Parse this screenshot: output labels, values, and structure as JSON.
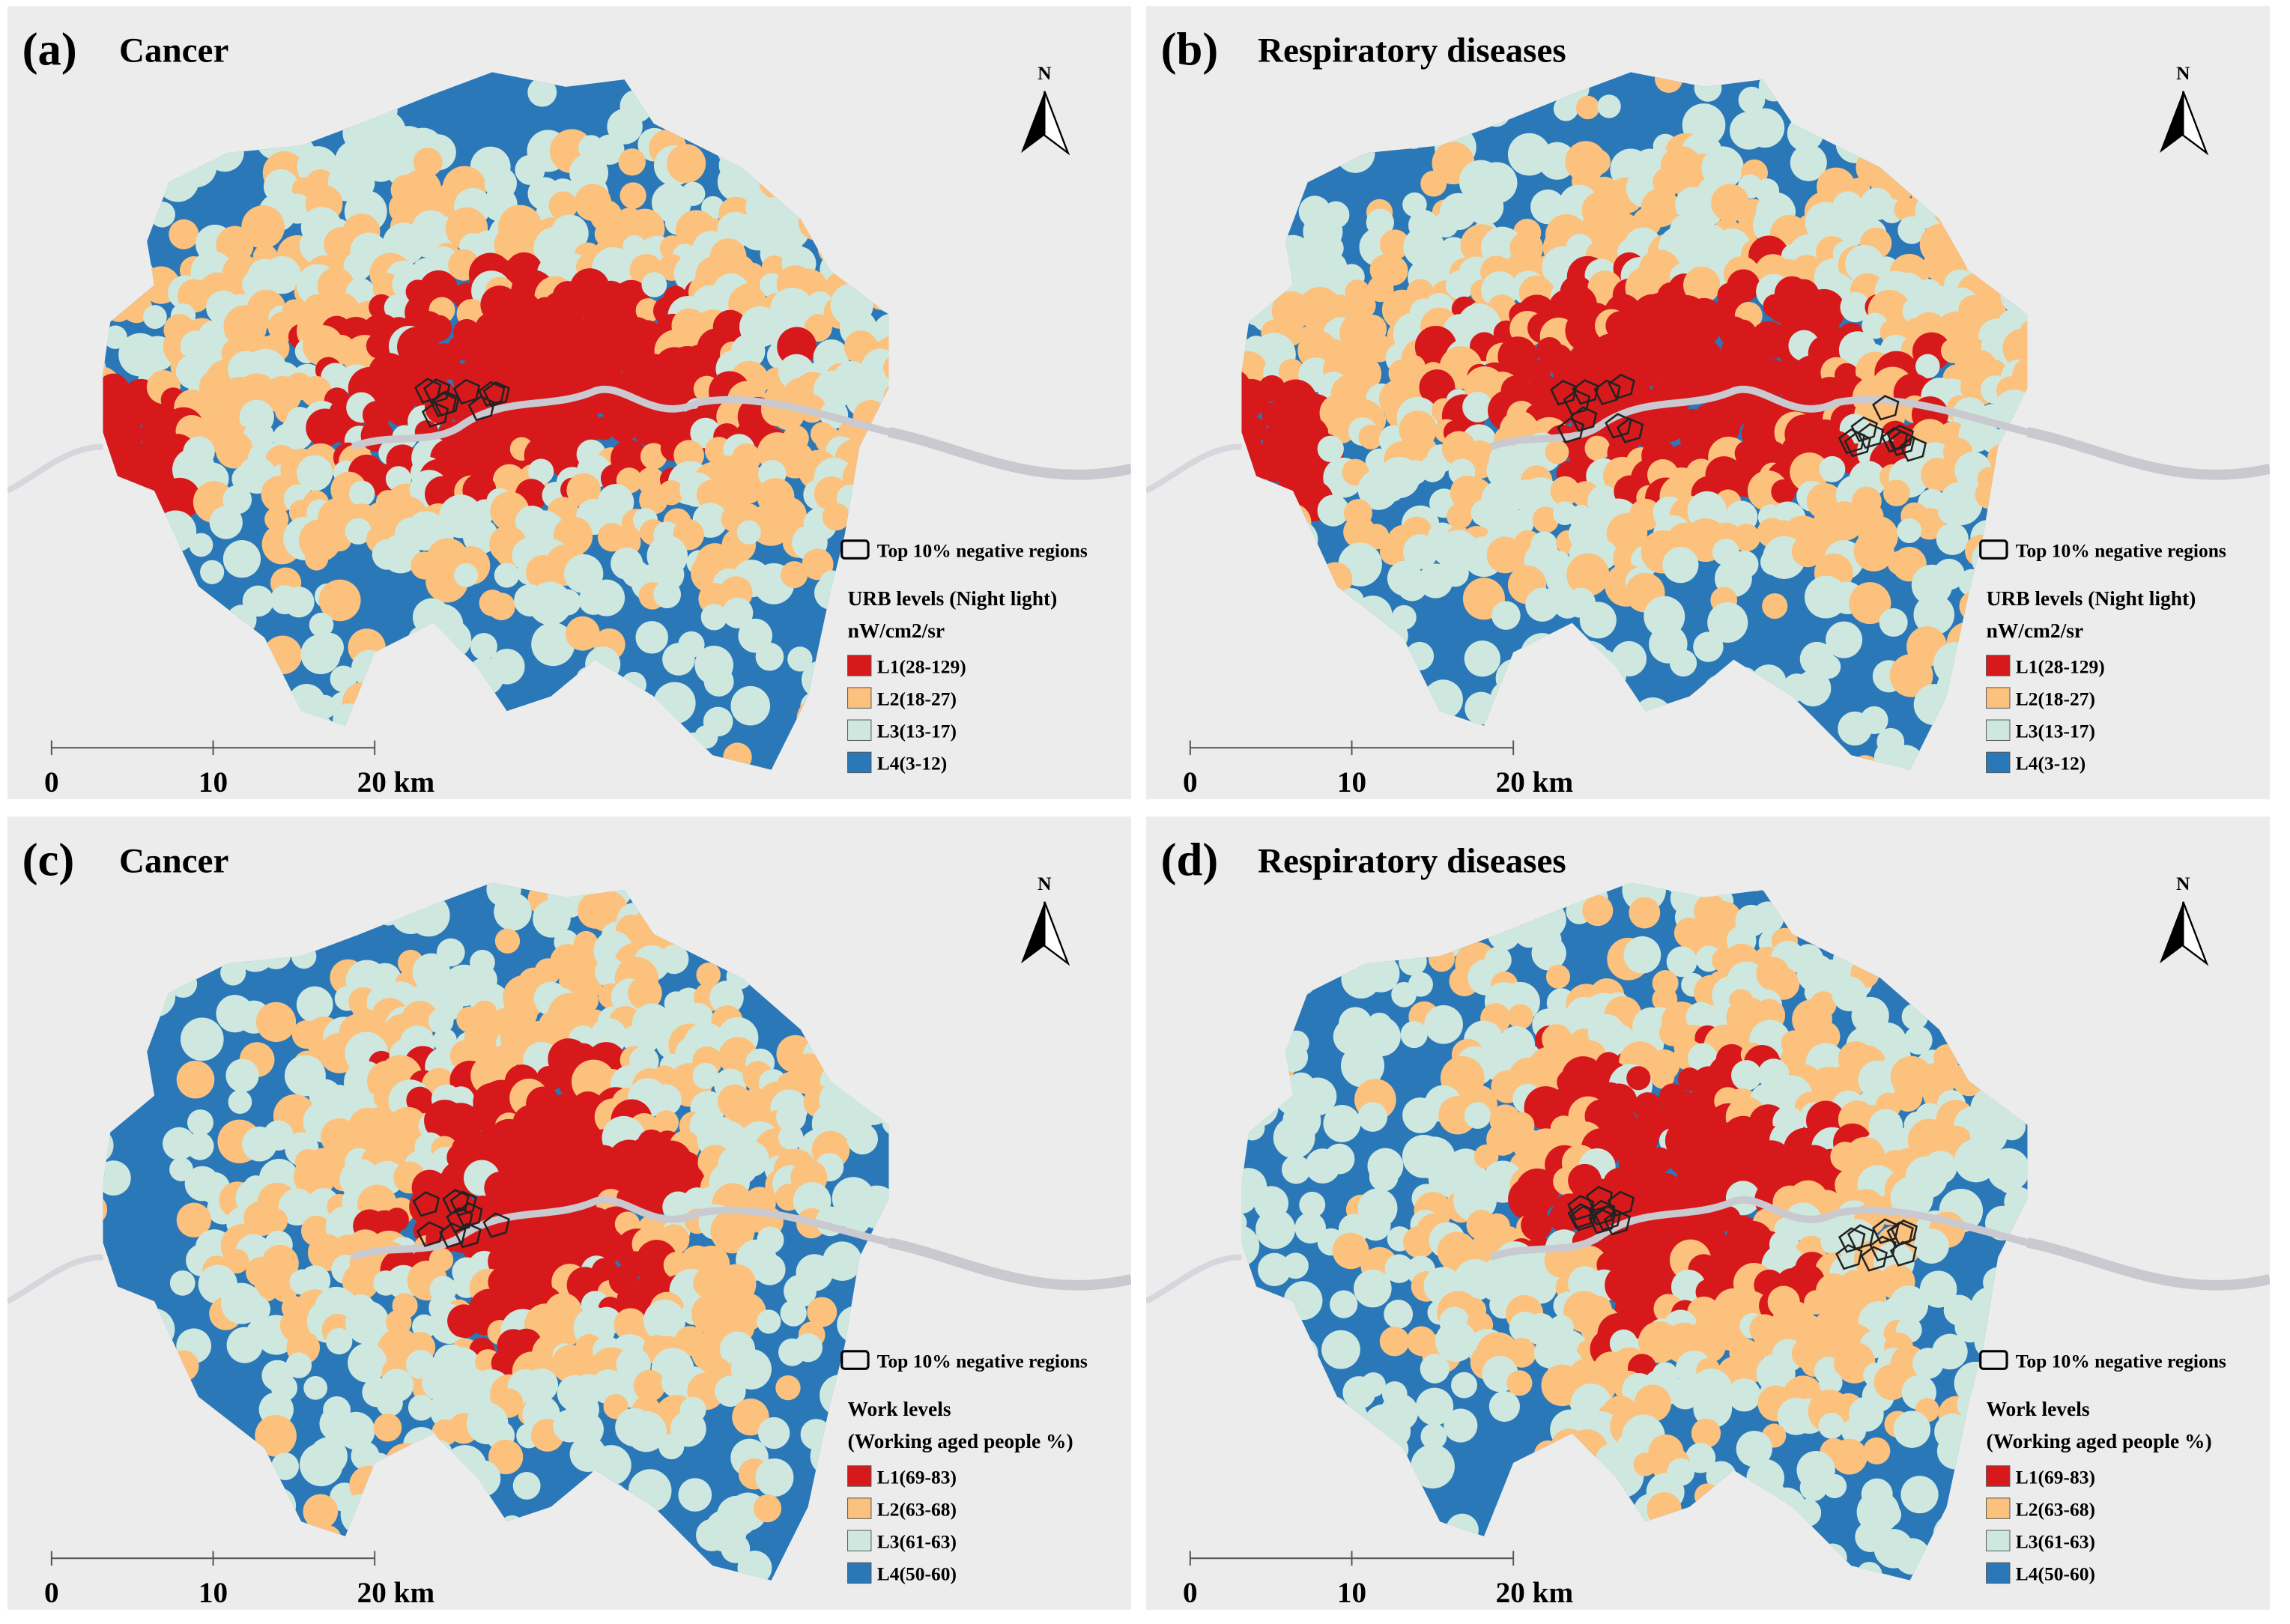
{
  "panels": [
    {
      "label": "(a)",
      "title": "Cancer",
      "north": "N",
      "outline_legend": "Top 10% negative regions",
      "legend_title": "URB levels (Night light)",
      "legend_subtitle": "nW/cm2/sr",
      "legend": [
        {
          "label": "L1(28-129)",
          "color": "#d7191c"
        },
        {
          "label": "L2(18-27)",
          "color": "#fbc17d"
        },
        {
          "label": "L3(13-17)",
          "color": "#cfe8df"
        },
        {
          "label": "L4(3-12)",
          "color": "#2b78b8"
        }
      ],
      "scale": [
        "0",
        "10",
        "20 km"
      ]
    },
    {
      "label": "(b)",
      "title": "Respiratory diseases",
      "north": "N",
      "outline_legend": "Top 10% negative regions",
      "legend_title": "URB levels (Night light)",
      "legend_subtitle": "nW/cm2/sr",
      "legend": [
        {
          "label": "L1(28-129)",
          "color": "#d7191c"
        },
        {
          "label": "L2(18-27)",
          "color": "#fbc17d"
        },
        {
          "label": "L3(13-17)",
          "color": "#cfe8df"
        },
        {
          "label": "L4(3-12)",
          "color": "#2b78b8"
        }
      ],
      "scale": [
        "0",
        "10",
        "20 km"
      ]
    },
    {
      "label": "(c)",
      "title": "Cancer",
      "north": "N",
      "outline_legend": "Top 10% negative regions",
      "legend_title": "Work levels",
      "legend_subtitle": "(Working aged people %)",
      "legend": [
        {
          "label": "L1(69-83)",
          "color": "#d7191c"
        },
        {
          "label": "L2(63-68)",
          "color": "#fbc17d"
        },
        {
          "label": "L3(61-63)",
          "color": "#cfe8df"
        },
        {
          "label": "L4(50-60)",
          "color": "#2b78b8"
        }
      ],
      "scale": [
        "0",
        "10",
        "20 km"
      ]
    },
    {
      "label": "(d)",
      "title": "Respiratory diseases",
      "north": "N",
      "outline_legend": "Top 10% negative regions",
      "legend_title": "Work levels",
      "legend_subtitle": "(Working aged people %)",
      "legend": [
        {
          "label": "L1(69-83)",
          "color": "#d7191c"
        },
        {
          "label": "L2(63-68)",
          "color": "#fbc17d"
        },
        {
          "label": "L3(61-63)",
          "color": "#cfe8df"
        },
        {
          "label": "L4(50-60)",
          "color": "#2b78b8"
        }
      ],
      "scale": [
        "0",
        "10",
        "20 km"
      ]
    }
  ]
}
